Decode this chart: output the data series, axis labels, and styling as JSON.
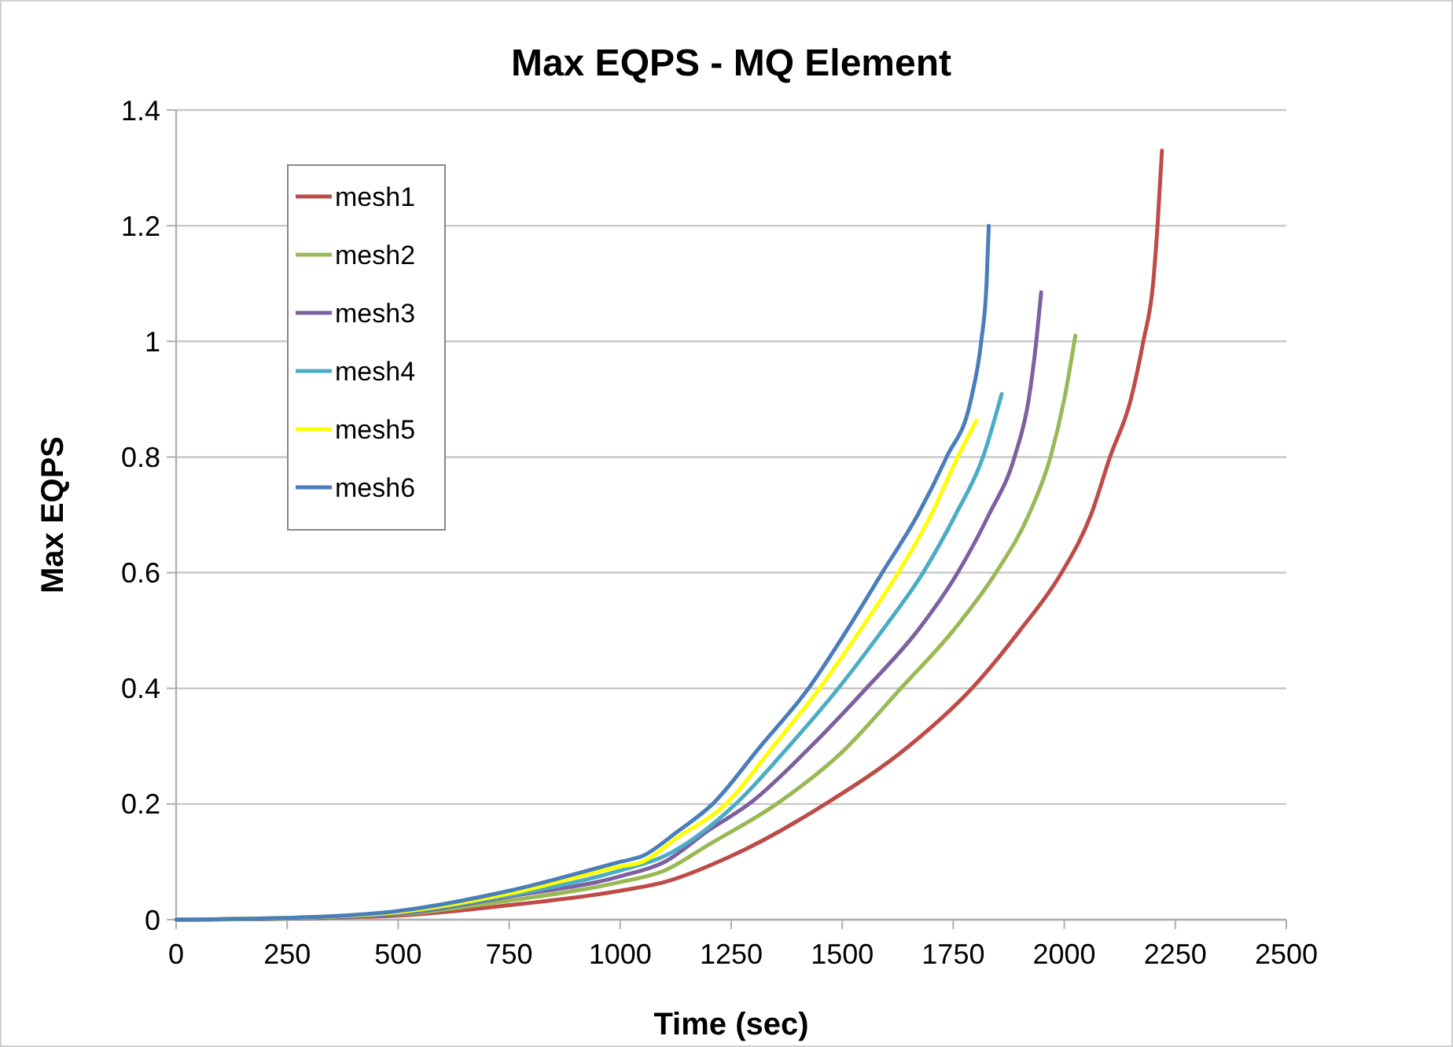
{
  "chart_data": {
    "type": "line",
    "title": "Max EQPS - MQ Element",
    "xlabel": "Time (sec)",
    "ylabel": "Max EQPS",
    "xlim": [
      0,
      2500
    ],
    "xticks": [
      0,
      250,
      500,
      750,
      1000,
      1250,
      1500,
      1750,
      2000,
      2250,
      2500
    ],
    "ylim": [
      0,
      1.4
    ],
    "yticks": [
      0,
      0.2,
      0.4,
      0.6,
      0.8,
      1,
      1.2,
      1.4
    ],
    "grid": "y",
    "legend": "top left",
    "marker": "none",
    "line_style": "solid",
    "series": [
      {
        "name": "mesh1",
        "color": "#be4b48",
        "x": [
          0,
          250,
          500,
          750,
          1000,
          1100,
          1250,
          1462,
          1650,
          1792,
          1900,
          1994,
          2060,
          2103,
          2150,
          2178,
          2200,
          2210,
          2220
        ],
        "values": [
          0,
          0.002,
          0.007,
          0.025,
          0.05,
          0.065,
          0.11,
          0.2,
          0.3,
          0.4,
          0.5,
          0.6,
          0.7,
          0.8,
          0.9,
          1,
          1.1,
          1.2,
          1.33
        ]
      },
      {
        "name": "mesh2",
        "color": "#98b954",
        "x": [
          0,
          250,
          500,
          750,
          1000,
          1100,
          1200,
          1352,
          1500,
          1632,
          1750,
          1846,
          1920,
          1969,
          2000,
          2025
        ],
        "values": [
          0,
          0.002,
          0.009,
          0.033,
          0.065,
          0.085,
          0.13,
          0.2,
          0.29,
          0.4,
          0.5,
          0.6,
          0.7,
          0.8,
          0.9,
          1.01
        ]
      },
      {
        "name": "mesh3",
        "color": "#7d60a0",
        "x": [
          0,
          250,
          500,
          750,
          1000,
          1100,
          1200,
          1290,
          1430,
          1554,
          1670,
          1760,
          1830,
          1888,
          1920,
          1937,
          1948
        ],
        "values": [
          0,
          0.002,
          0.01,
          0.04,
          0.075,
          0.1,
          0.155,
          0.2,
          0.3,
          0.4,
          0.5,
          0.6,
          0.7,
          0.8,
          0.9,
          1,
          1.085
        ]
      },
      {
        "name": "mesh4",
        "color": "#4bacc6",
        "x": [
          0,
          250,
          500,
          750,
          1000,
          1100,
          1260,
          1380,
          1491,
          1590,
          1682,
          1755,
          1817,
          1859
        ],
        "values": [
          0,
          0.003,
          0.012,
          0.042,
          0.085,
          0.11,
          0.2,
          0.3,
          0.4,
          0.5,
          0.6,
          0.7,
          0.8,
          0.909
        ]
      },
      {
        "name": "mesh5",
        "color": "#ffff00",
        "x": [
          0,
          250,
          500,
          750,
          1000,
          1050,
          1125,
          1238,
          1345,
          1449,
          1540,
          1626,
          1700,
          1760,
          1802
        ],
        "values": [
          0,
          0.003,
          0.013,
          0.045,
          0.092,
          0.1,
          0.14,
          0.2,
          0.3,
          0.4,
          0.5,
          0.6,
          0.7,
          0.8,
          0.863
        ]
      },
      {
        "name": "mesh6",
        "color": "#4a7ebb",
        "x": [
          0,
          250,
          500,
          750,
          1000,
          1050,
          1125,
          1208,
          1316,
          1424,
          1510,
          1590,
          1670,
          1735,
          1790,
          1813,
          1825,
          1830
        ],
        "values": [
          0,
          0.003,
          0.015,
          0.05,
          0.1,
          0.11,
          0.15,
          0.2,
          0.3,
          0.4,
          0.5,
          0.6,
          0.7,
          0.8,
          0.9,
          1,
          1.1,
          1.2
        ]
      }
    ]
  }
}
